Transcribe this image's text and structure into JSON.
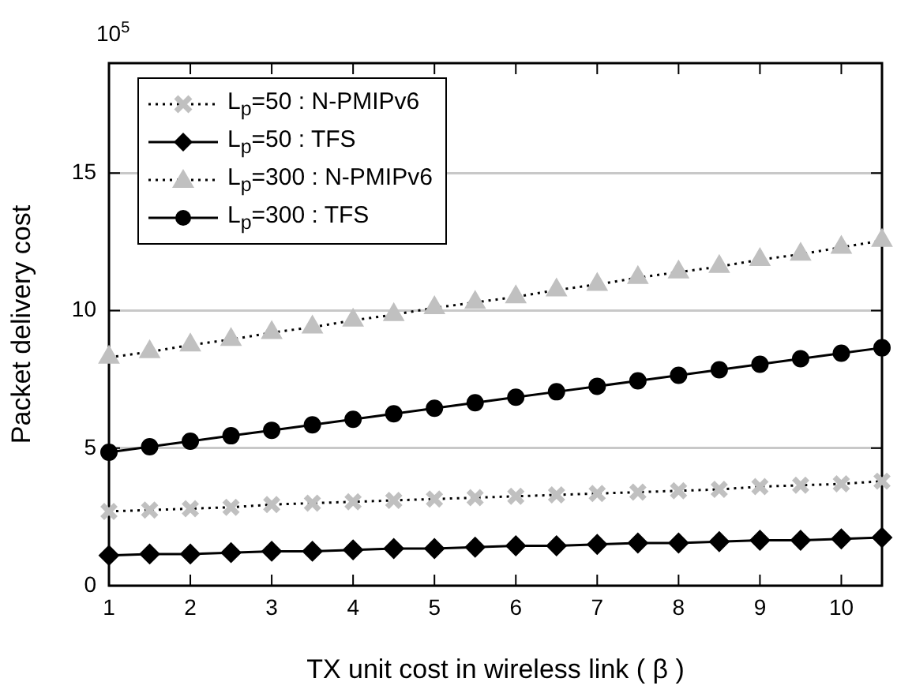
{
  "chart_data": {
    "type": "line",
    "xlabel": "TX unit cost in wireless link ( β )",
    "ylabel": "Packet delivery cost",
    "annotations": [
      "10$^{5}$"
    ],
    "x": [
      1,
      1.5,
      2,
      2.5,
      3,
      3.5,
      4,
      4.5,
      5,
      5.5,
      6,
      6.5,
      7,
      7.5,
      8,
      8.5,
      9,
      9.5,
      10,
      10.5
    ],
    "series": [
      {
        "name": "L$_{p}$=50 : N-PMIPv6",
        "color": "#c0c0c0",
        "marker": "cross",
        "line_style": "dotted",
        "values": [
          2.7,
          2.75,
          2.8,
          2.85,
          2.95,
          3.0,
          3.05,
          3.1,
          3.15,
          3.2,
          3.25,
          3.3,
          3.35,
          3.4,
          3.45,
          3.5,
          3.6,
          3.65,
          3.7,
          3.8
        ]
      },
      {
        "name": "L$_{p}$=50 : TFS",
        "color": "#000000",
        "marker": "diamond",
        "line_style": "solid",
        "values": [
          1.1,
          1.15,
          1.15,
          1.2,
          1.25,
          1.25,
          1.3,
          1.35,
          1.35,
          1.4,
          1.45,
          1.45,
          1.5,
          1.55,
          1.55,
          1.6,
          1.65,
          1.65,
          1.7,
          1.75
        ]
      },
      {
        "name": "L$_{p}$=300 : N-PMIPv6",
        "color": "#c0c0c0",
        "marker": "triangle",
        "line_style": "dotted",
        "values": [
          8.3,
          8.5,
          8.75,
          8.95,
          9.2,
          9.4,
          9.65,
          9.85,
          10.1,
          10.3,
          10.5,
          10.75,
          10.95,
          11.2,
          11.4,
          11.6,
          11.85,
          12.05,
          12.3,
          12.55
        ]
      },
      {
        "name": "L$_{p}$=300 : TFS",
        "color": "#000000",
        "marker": "circle",
        "line_style": "solid",
        "values": [
          4.85,
          5.05,
          5.25,
          5.45,
          5.65,
          5.85,
          6.05,
          6.25,
          6.45,
          6.65,
          6.85,
          7.05,
          7.25,
          7.45,
          7.65,
          7.85,
          8.05,
          8.25,
          8.45,
          8.65
        ]
      }
    ],
    "xlim": [
      1,
      10.5
    ],
    "xticks": [
      1,
      2,
      3,
      4,
      5,
      6,
      7,
      8,
      9,
      10
    ],
    "ylim": [
      0,
      19
    ],
    "yticks": [
      0,
      5,
      10,
      15
    ],
    "grid": "y",
    "legend": "top left"
  }
}
